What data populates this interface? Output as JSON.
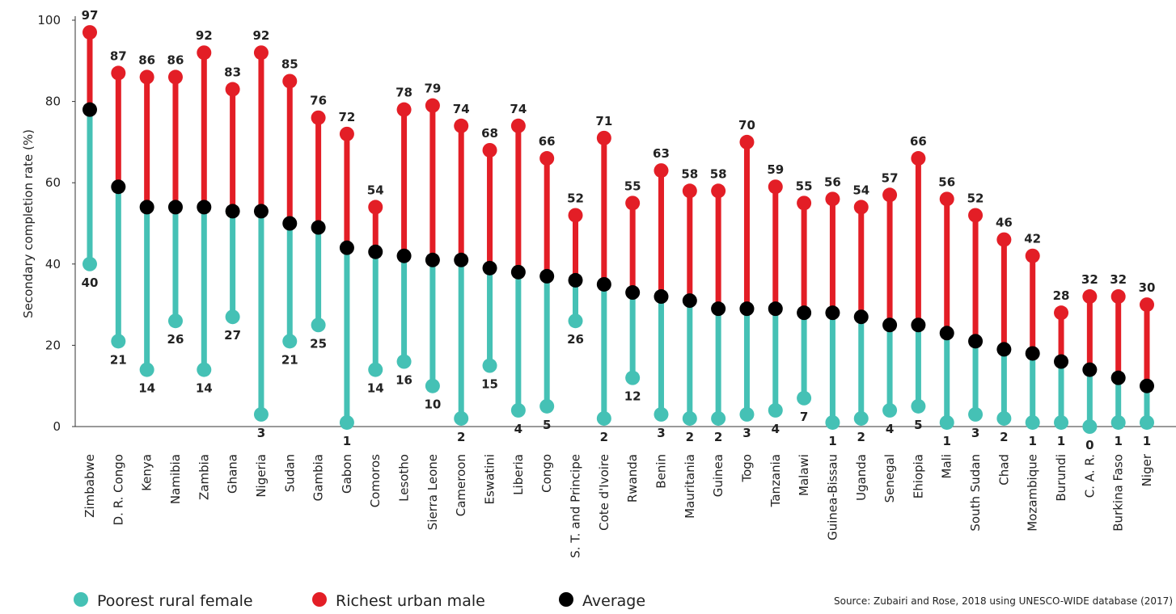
{
  "chart_data": {
    "type": "dumbbell",
    "ylabel": "Secondary completion rate (%)",
    "ylim": [
      0,
      100
    ],
    "yticks": [
      0,
      20,
      40,
      60,
      80,
      100
    ],
    "categories": [
      "Zimbabwe",
      "D. R. Congo",
      "Kenya",
      "Namibia",
      "Zambia",
      "Ghana",
      "Nigeria",
      "Sudan",
      "Gambia",
      "Gabon",
      "Comoros",
      "Lesotho",
      "Sierra Leone",
      "Cameroon",
      "Eswatini",
      "Liberia",
      "Congo",
      "S. T. and Principe",
      "Cote d'Ivoire",
      "Rwanda",
      "Benin",
      "Mauritania",
      "Guinea",
      "Togo",
      "Tanzania",
      "Malawi",
      "Guinea-Bissau",
      "Uganda",
      "Senegal",
      "Ehiopia",
      "Mali",
      "South Sudan",
      "Chad",
      "Mozambique",
      "Burundi",
      "C. A. R.",
      "Burkina Faso",
      "Niger"
    ],
    "series": [
      {
        "name": "Poorest rural female",
        "color": "#45c1b5",
        "labels": "below",
        "values": [
          40,
          21,
          14,
          26,
          14,
          27,
          3,
          21,
          25,
          1,
          14,
          16,
          10,
          2,
          15,
          4,
          5,
          26,
          2,
          12,
          3,
          2,
          2,
          3,
          4,
          7,
          1,
          2,
          4,
          5,
          1,
          3,
          2,
          1,
          1,
          0,
          1,
          1
        ]
      },
      {
        "name": "Richest urban male",
        "color": "#e31e26",
        "labels": "above",
        "values": [
          97,
          87,
          86,
          86,
          92,
          83,
          92,
          85,
          76,
          72,
          54,
          78,
          79,
          74,
          68,
          74,
          66,
          52,
          71,
          55,
          63,
          58,
          58,
          70,
          59,
          55,
          56,
          54,
          57,
          66,
          56,
          52,
          46,
          42,
          28,
          32,
          32,
          30
        ]
      },
      {
        "name": "Average",
        "color": "#000000",
        "values": [
          78,
          59,
          54,
          54,
          54,
          53,
          53,
          50,
          49,
          44,
          43,
          42,
          41,
          41,
          39,
          38,
          37,
          36,
          35,
          33,
          32,
          31,
          29,
          29,
          29,
          28,
          28,
          27,
          25,
          25,
          23,
          21,
          19,
          18,
          16,
          14,
          12,
          10
        ]
      }
    ],
    "legend": "bottom",
    "source": "Source: Zubairi and Rose, 2018 using UNESCO-WIDE database (2017)"
  }
}
